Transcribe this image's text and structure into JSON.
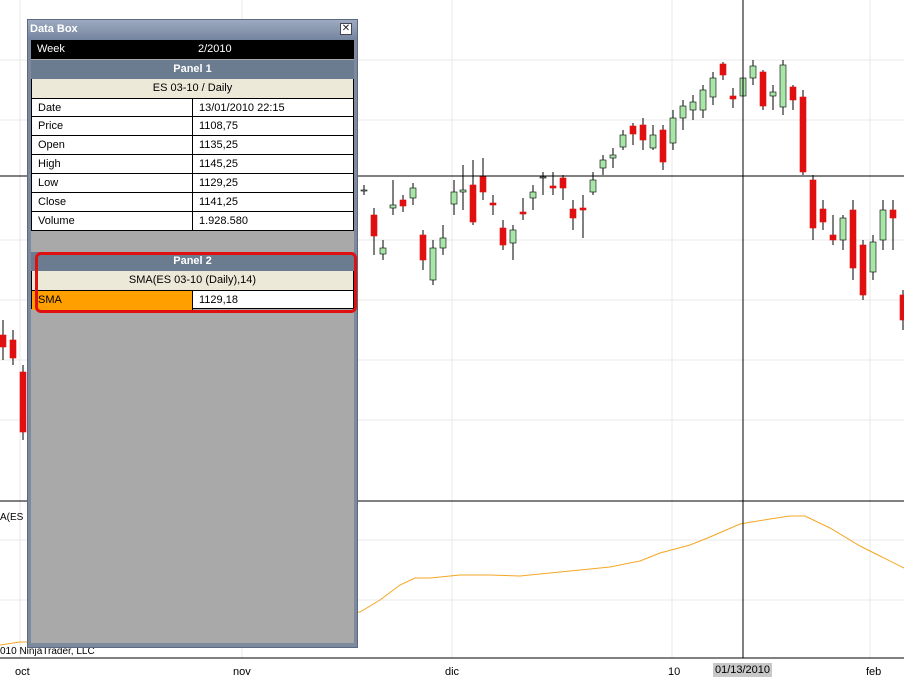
{
  "databox": {
    "title": "Data Box",
    "close_glyph": "✕",
    "week_label": "Week",
    "week_value": "2/2010",
    "panel1": {
      "title": "Panel 1",
      "instrument": "ES 03-10 / Daily",
      "rows": [
        {
          "label": "Date",
          "value": "13/01/2010 22:15"
        },
        {
          "label": "Price",
          "value": "1108,75"
        },
        {
          "label": "Open",
          "value": "1135,25"
        },
        {
          "label": "High",
          "value": "1145,25"
        },
        {
          "label": "Low",
          "value": "1129,25"
        },
        {
          "label": "Close",
          "value": "1141,25"
        },
        {
          "label": "Volume",
          "value": "1.928.580"
        }
      ]
    },
    "panel2": {
      "title": "Panel 2",
      "indicator": "SMA(ES 03-10 (Daily),14)",
      "rows": [
        {
          "label": "SMA",
          "value": "1129,18"
        }
      ]
    }
  },
  "chart": {
    "x_axis_labels": [
      "oct",
      "nov",
      "dic",
      "10",
      "feb"
    ],
    "crosshair_date_label": "01/13/2010",
    "indicator_tag": "A(ES",
    "copyright": "010 NinjaTrader, LLC",
    "colors": {
      "up": "#a8e6a8",
      "down": "#e01010",
      "sma": "#f5a623",
      "grid": "#e8e8e8"
    }
  }
}
